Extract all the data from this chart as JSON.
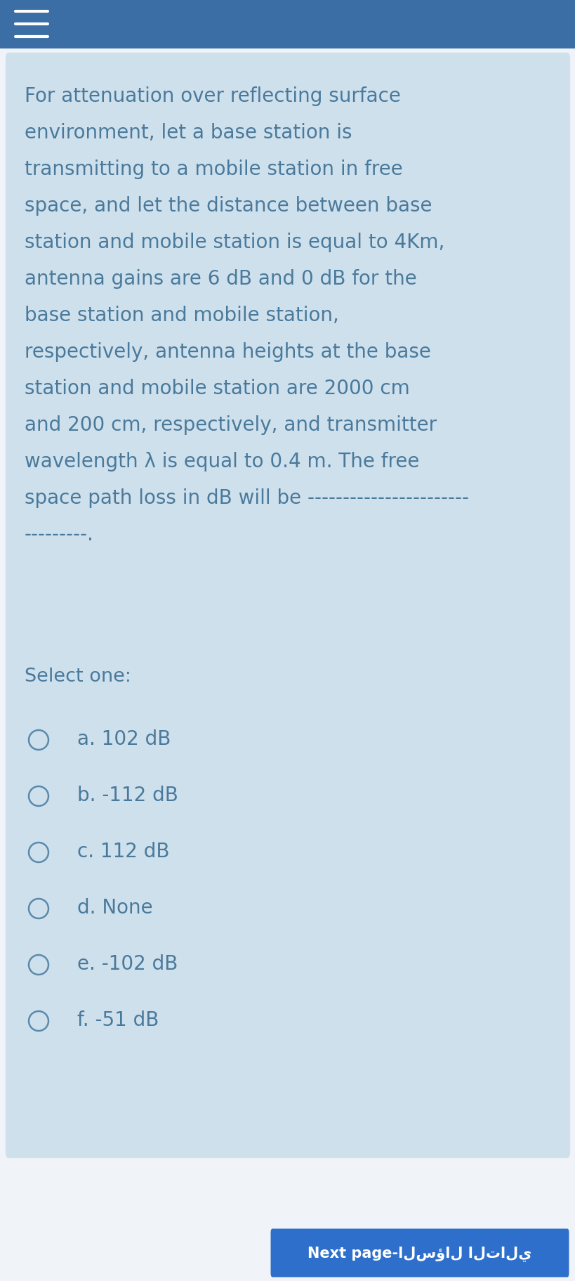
{
  "bg_color": "#f0f4f8",
  "card_bg_color": "#cfe0ed",
  "card_text_color": "#4a7a9b",
  "header_bar_color": "#3a6ea5",
  "question_lines": [
    "For attenuation over reflecting surface",
    "environment, let a base station is",
    "transmitting to a mobile station in free",
    "space, and let the distance between base",
    "station and mobile station is equal to 4Km,",
    "antenna gains are 6 dB and 0 dB for the",
    "base station and mobile station,",
    "respectively, antenna heights at the base",
    "station and mobile station are 2000 cm",
    "and 200 cm, respectively, and transmitter",
    "wavelength λ is equal to 0.4 m. The free",
    "space path loss in dB will be -----------------------",
    "---------."
  ],
  "select_label": "Select one:",
  "options": [
    "a. 102 dB",
    "b. -112 dB",
    "c. 112 dB",
    "d. None",
    "e. -102 dB",
    "f. -51 dB"
  ],
  "next_button_text": "Next page-السؤال التالي",
  "next_button_color": "#2e6fcc",
  "next_button_text_color": "#ffffff",
  "question_fontsize": 20.0,
  "options_fontsize": 20.0,
  "select_fontsize": 19.5,
  "radio_color": "#5a8aab",
  "radio_linewidth": 1.8
}
